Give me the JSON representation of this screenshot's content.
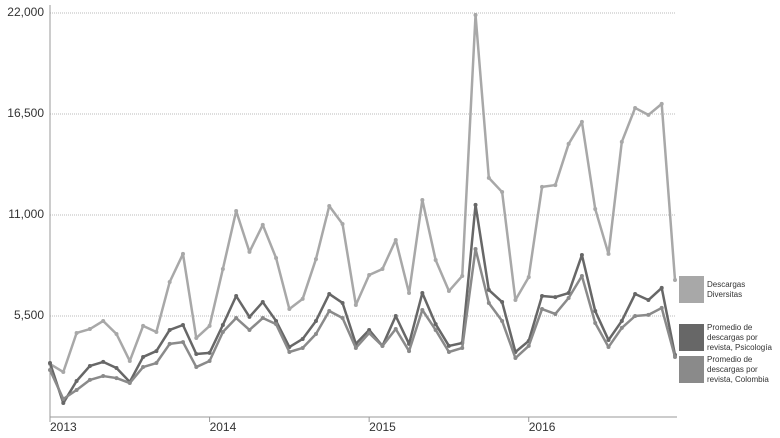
{
  "chart_data": {
    "type": "line",
    "categories": [
      "2013",
      null,
      null,
      null,
      null,
      null,
      null,
      null,
      null,
      null,
      null,
      null,
      "2014",
      null,
      null,
      null,
      null,
      null,
      null,
      null,
      null,
      null,
      null,
      null,
      "2015",
      null,
      null,
      null,
      null,
      null,
      null,
      null,
      null,
      null,
      null,
      null,
      "2016",
      null,
      null,
      null,
      null,
      null,
      null,
      null,
      null,
      null,
      null,
      null
    ],
    "ylim": [
      0,
      22000
    ],
    "yticks": [
      {
        "value": 5500,
        "label": "5,500"
      },
      {
        "value": 11000,
        "label": "11,000"
      },
      {
        "value": 16500,
        "label": "16,500"
      },
      {
        "value": 22000,
        "label": "22,000"
      }
    ],
    "grid": true,
    "legend": "right",
    "series": [
      {
        "name": "Descargas Diversitas",
        "color": "#a8a8a8",
        "values": [
          2890,
          2450,
          4575,
          4790,
          5230,
          4520,
          3050,
          4960,
          4630,
          7350,
          8880,
          4300,
          4960,
          8060,
          11220,
          8990,
          10460,
          8660,
          5880,
          6430,
          8600,
          11490,
          10510,
          6100,
          7730,
          8060,
          9640,
          6750,
          11820,
          8550,
          6860,
          7680,
          21890,
          13020,
          12250,
          6370,
          7620,
          12530,
          12630,
          14870,
          16070,
          11330,
          8880,
          14980,
          16830,
          16450,
          17050,
          7460
        ]
      },
      {
        "name": "Promedio de descargas por revista, Psicología",
        "color": "#676767",
        "values": [
          2940,
          760,
          1960,
          2780,
          3000,
          2670,
          1910,
          3270,
          3590,
          4740,
          5010,
          3430,
          3490,
          5010,
          6590,
          5450,
          6260,
          5230,
          3810,
          4250,
          5230,
          6700,
          6210,
          3980,
          4740,
          3870,
          5500,
          3980,
          6750,
          5060,
          3870,
          4030,
          11550,
          6920,
          6260,
          3540,
          4140,
          6590,
          6530,
          6750,
          8820,
          5770,
          4190,
          5230,
          6700,
          6370,
          7030,
          3380
        ]
      },
      {
        "name": "Promedio de descargas por revista, Colombia",
        "color": "#8a8a8a",
        "values": [
          2560,
          980,
          1470,
          2020,
          2230,
          2120,
          1850,
          2720,
          2940,
          3980,
          4080,
          2720,
          3050,
          4630,
          5390,
          4740,
          5390,
          5060,
          3540,
          3760,
          4520,
          5770,
          5390,
          3760,
          4570,
          3870,
          4790,
          3590,
          5830,
          4740,
          3540,
          3760,
          9150,
          6210,
          5230,
          3210,
          3870,
          5880,
          5610,
          6480,
          7680,
          5120,
          3810,
          4850,
          5500,
          5560,
          5940,
          3270
        ]
      }
    ]
  }
}
